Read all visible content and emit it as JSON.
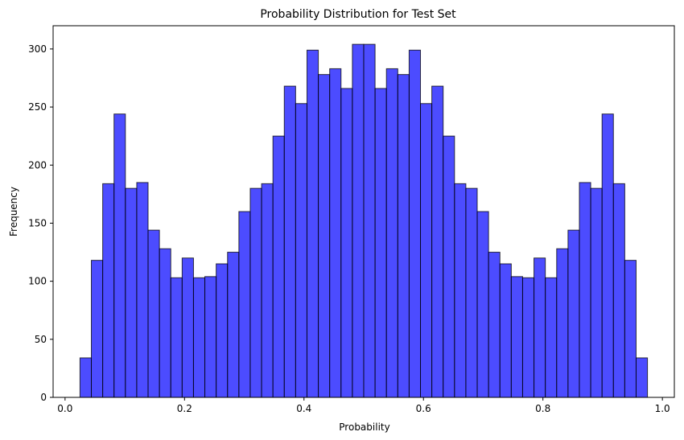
{
  "chart_data": {
    "type": "bar",
    "title": "Probability Distribution for Test Set",
    "xlabel": "Probability",
    "ylabel": "Frequency",
    "xlim": [
      -0.02,
      1.02
    ],
    "ylim": [
      0,
      320
    ],
    "xticks": [
      0.0,
      0.2,
      0.4,
      0.6,
      0.8,
      1.0
    ],
    "xtick_labels": [
      "0.0",
      "0.2",
      "0.4",
      "0.6",
      "0.8",
      "1.0"
    ],
    "yticks": [
      0,
      50,
      100,
      150,
      200,
      250,
      300
    ],
    "ytick_labels": [
      "0",
      "50",
      "100",
      "150",
      "200",
      "250",
      "300"
    ],
    "grid": false,
    "bar_color": "#0000ff",
    "bar_opacity": 0.7,
    "edge_color": "#000000",
    "bins": {
      "start": 0.025,
      "end": 0.975,
      "count": 50
    },
    "values": [
      34,
      118,
      184,
      244,
      180,
      185,
      144,
      128,
      103,
      120,
      103,
      104,
      115,
      125,
      160,
      180,
      184,
      225,
      268,
      253,
      299,
      278,
      283,
      266,
      304,
      304,
      266,
      283,
      278,
      299,
      253,
      268,
      225,
      184,
      180,
      160,
      125,
      115,
      104,
      103,
      120,
      103,
      128,
      144,
      185,
      180,
      244,
      184,
      118,
      34
    ]
  }
}
